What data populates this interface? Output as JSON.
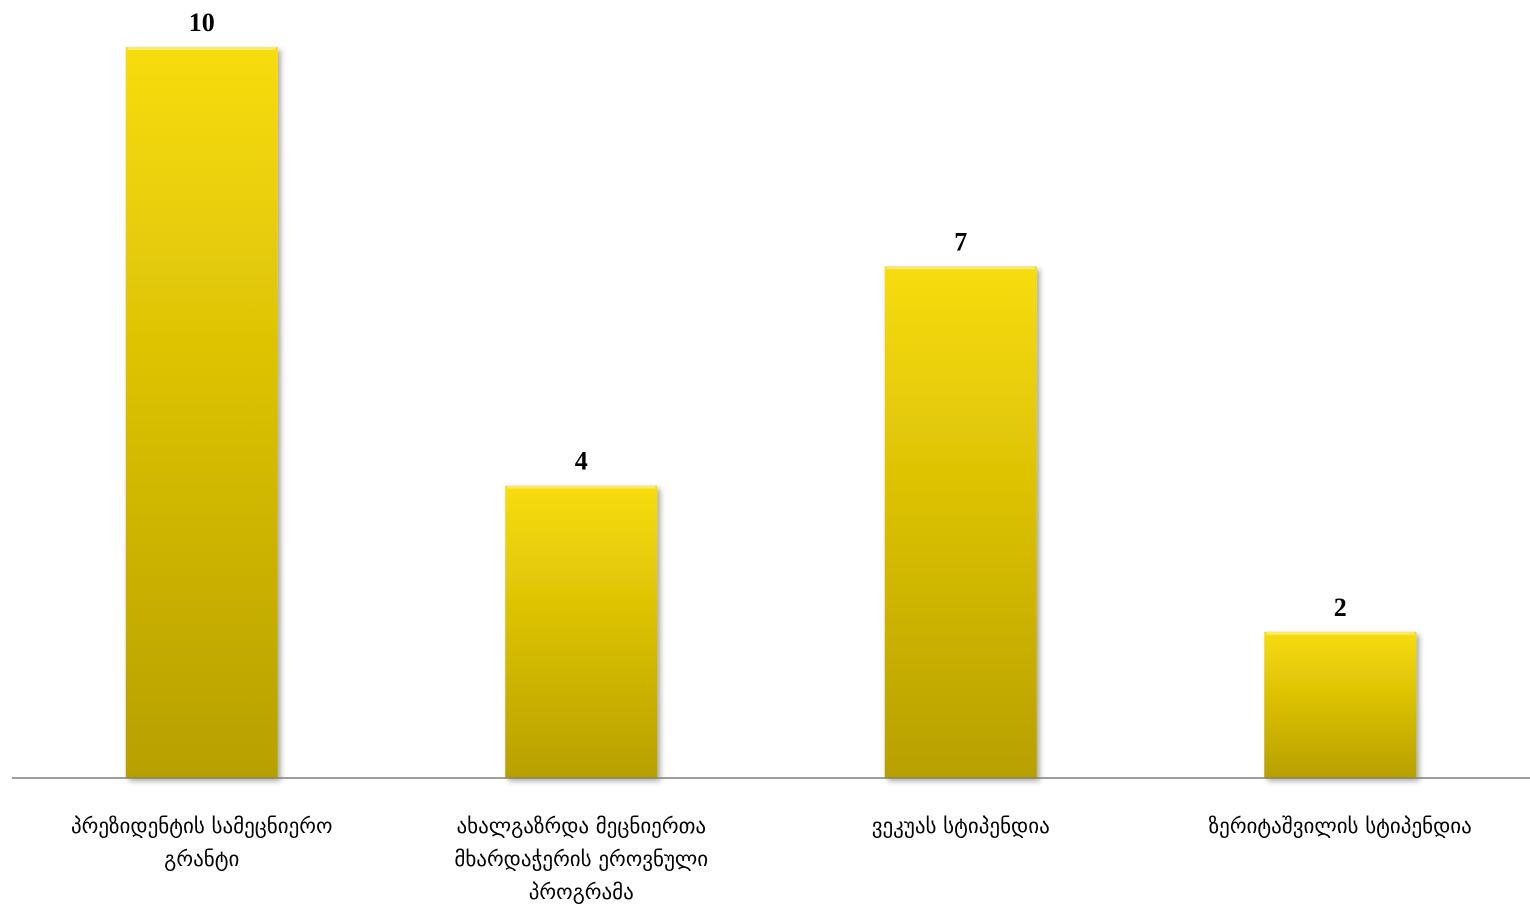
{
  "chart_data": {
    "type": "bar",
    "title": "",
    "xlabel": "",
    "ylabel": "",
    "ylim": [
      0,
      10
    ],
    "grid": false,
    "legend": "none",
    "bar_color": "#E8C400",
    "bar_color_light": "#F7DC0A",
    "bar_color_dark": "#B8A000",
    "axis_color": "#7f7f7f",
    "categories": [
      [
        "პრეზიდენტის სამეცნიერო",
        "გრანტი"
      ],
      [
        "ახალგაზრდა მეცნიერთა",
        "მხარდაჭერის ეროვნული",
        "პროგრამა"
      ],
      [
        "ვეკუას სტიპენდია"
      ],
      [
        "ზერიტაშვილის სტიპენდია"
      ]
    ],
    "values": [
      10,
      4,
      7,
      2
    ]
  }
}
